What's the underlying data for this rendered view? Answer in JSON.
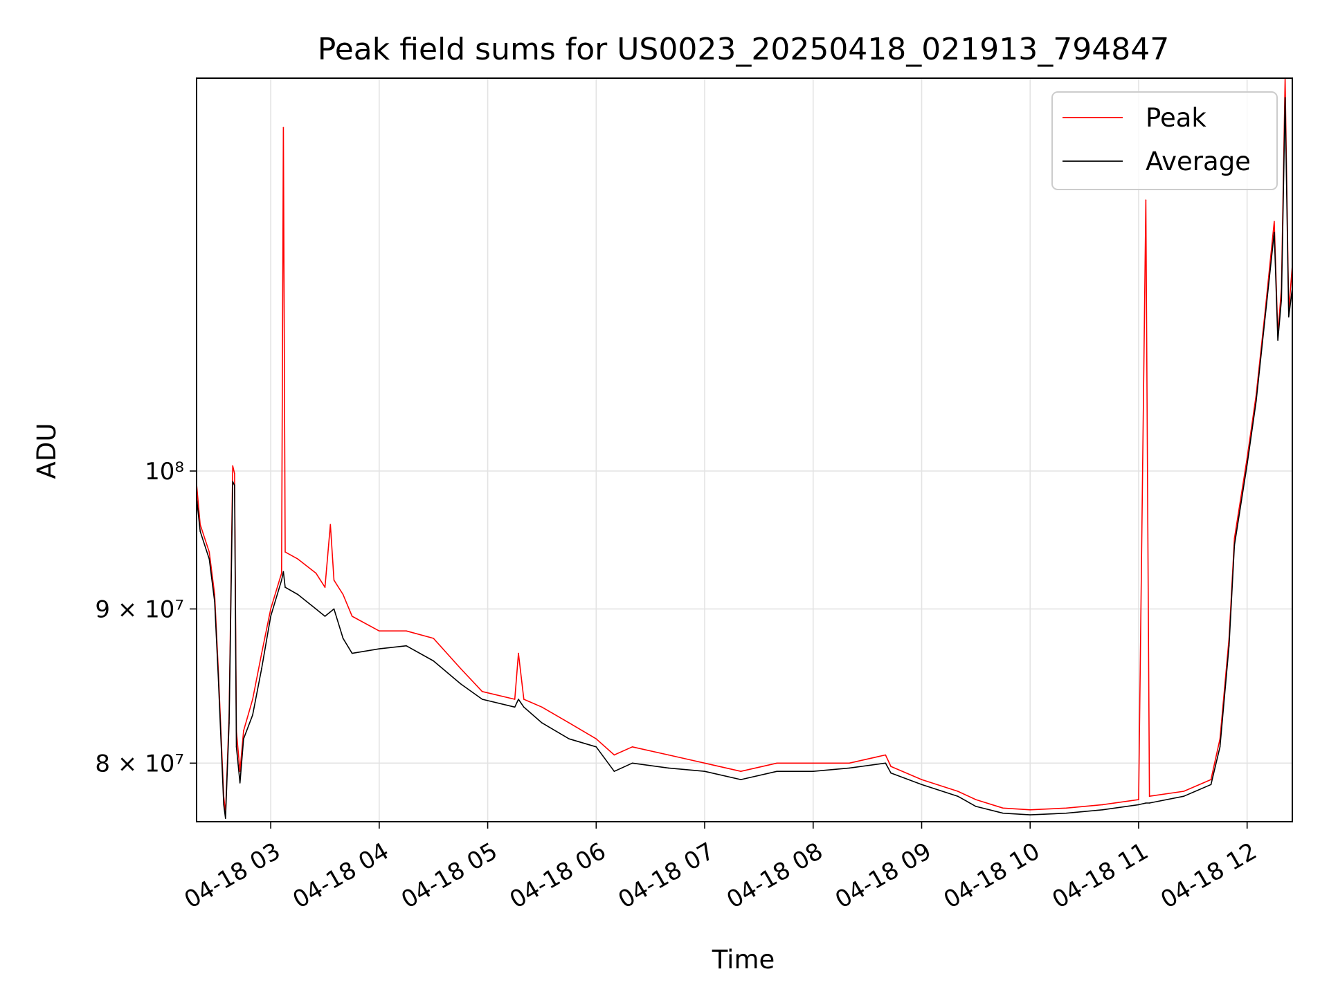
{
  "chart_data": {
    "type": "line",
    "title": "Peak field sums for US0023_20250418_021913_794847",
    "xlabel": "Time",
    "ylabel": "ADU",
    "y_scale": "log",
    "xlim": [
      "2025-04-18 02:19",
      "2025-04-18 12:25"
    ],
    "ylim": [
      76500000,
      135000000
    ],
    "x_ticks": [
      "04-18 03",
      "04-18 04",
      "04-18 05",
      "04-18 06",
      "04-18 07",
      "04-18 08",
      "04-18 09",
      "04-18 10",
      "04-18 11",
      "04-18 12"
    ],
    "y_ticks": [
      {
        "value": 80000000,
        "label": "8 × 10⁷"
      },
      {
        "value": 90000000,
        "label": "9 × 10⁷"
      },
      {
        "value": 100000000,
        "label": "10⁸"
      }
    ],
    "grid": true,
    "legend_position": "top-right",
    "series": [
      {
        "name": "Peak",
        "color": "#ff0000",
        "points": [
          [
            "2025-04-18 02:19",
            99000000
          ],
          [
            "2025-04-18 02:21",
            96000000
          ],
          [
            "2025-04-18 02:26",
            94000000
          ],
          [
            "2025-04-18 02:29",
            91000000
          ],
          [
            "2025-04-18 02:31",
            86000000
          ],
          [
            "2025-04-18 02:34",
            78000000
          ],
          [
            "2025-04-18 02:35",
            77000000
          ],
          [
            "2025-04-18 02:37",
            83000000
          ],
          [
            "2025-04-18 02:39",
            100400000
          ],
          [
            "2025-04-18 02:40",
            99800000
          ],
          [
            "2025-04-18 02:41",
            82000000
          ],
          [
            "2025-04-18 02:43",
            79500000
          ],
          [
            "2025-04-18 02:45",
            82000000
          ],
          [
            "2025-04-18 02:50",
            84000000
          ],
          [
            "2025-04-18 02:55",
            87000000
          ],
          [
            "2025-04-18 03:00",
            90000000
          ],
          [
            "2025-04-18 03:06",
            92500000
          ],
          [
            "2025-04-18 03:07",
            130000000
          ],
          [
            "2025-04-18 03:08",
            94000000
          ],
          [
            "2025-04-18 03:15",
            93500000
          ],
          [
            "2025-04-18 03:25",
            92500000
          ],
          [
            "2025-04-18 03:30",
            91500000
          ],
          [
            "2025-04-18 03:33",
            96000000
          ],
          [
            "2025-04-18 03:35",
            92000000
          ],
          [
            "2025-04-18 03:40",
            91000000
          ],
          [
            "2025-04-18 03:45",
            89500000
          ],
          [
            "2025-04-18 04:00",
            88500000
          ],
          [
            "2025-04-18 04:15",
            88500000
          ],
          [
            "2025-04-18 04:30",
            88000000
          ],
          [
            "2025-04-18 04:45",
            86000000
          ],
          [
            "2025-04-18 04:57",
            84500000
          ],
          [
            "2025-04-18 05:15",
            84000000
          ],
          [
            "2025-04-18 05:17",
            87000000
          ],
          [
            "2025-04-18 05:20",
            84000000
          ],
          [
            "2025-04-18 05:30",
            83500000
          ],
          [
            "2025-04-18 05:45",
            82500000
          ],
          [
            "2025-04-18 06:00",
            81500000
          ],
          [
            "2025-04-18 06:10",
            80500000
          ],
          [
            "2025-04-18 06:20",
            81000000
          ],
          [
            "2025-04-18 06:40",
            80500000
          ],
          [
            "2025-04-18 07:00",
            80000000
          ],
          [
            "2025-04-18 07:20",
            79500000
          ],
          [
            "2025-04-18 07:40",
            80000000
          ],
          [
            "2025-04-18 08:00",
            80000000
          ],
          [
            "2025-04-18 08:20",
            80000000
          ],
          [
            "2025-04-18 08:40",
            80500000
          ],
          [
            "2025-04-18 08:43",
            79800000
          ],
          [
            "2025-04-18 09:00",
            79000000
          ],
          [
            "2025-04-18 09:20",
            78300000
          ],
          [
            "2025-04-18 09:30",
            77800000
          ],
          [
            "2025-04-18 09:45",
            77300000
          ],
          [
            "2025-04-18 10:00",
            77200000
          ],
          [
            "2025-04-18 10:20",
            77300000
          ],
          [
            "2025-04-18 10:40",
            77500000
          ],
          [
            "2025-04-18 11:00",
            77800000
          ],
          [
            "2025-04-18 11:04",
            123000000
          ],
          [
            "2025-04-18 11:06",
            78000000
          ],
          [
            "2025-04-18 11:25",
            78300000
          ],
          [
            "2025-04-18 11:40",
            79000000
          ],
          [
            "2025-04-18 11:45",
            81500000
          ],
          [
            "2025-04-18 11:50",
            88000000
          ],
          [
            "2025-04-18 11:53",
            95000000
          ],
          [
            "2025-04-18 12:00",
            101000000
          ],
          [
            "2025-04-18 12:05",
            106000000
          ],
          [
            "2025-04-18 12:10",
            113000000
          ],
          [
            "2025-04-18 12:15",
            121000000
          ],
          [
            "2025-04-18 12:17",
            111000000
          ],
          [
            "2025-04-18 12:19",
            115000000
          ],
          [
            "2025-04-18 12:21",
            135000000
          ],
          [
            "2025-04-18 12:23",
            113000000
          ],
          [
            "2025-04-18 12:25",
            117000000
          ]
        ]
      },
      {
        "name": "Average",
        "color": "#000000",
        "points": [
          [
            "2025-04-18 02:19",
            98000000
          ],
          [
            "2025-04-18 02:21",
            95500000
          ],
          [
            "2025-04-18 02:26",
            93500000
          ],
          [
            "2025-04-18 02:29",
            90500000
          ],
          [
            "2025-04-18 02:31",
            85500000
          ],
          [
            "2025-04-18 02:34",
            77500000
          ],
          [
            "2025-04-18 02:35",
            76700000
          ],
          [
            "2025-04-18 02:37",
            82500000
          ],
          [
            "2025-04-18 02:39",
            99200000
          ],
          [
            "2025-04-18 02:40",
            98900000
          ],
          [
            "2025-04-18 02:41",
            81000000
          ],
          [
            "2025-04-18 02:43",
            78800000
          ],
          [
            "2025-04-18 02:45",
            81500000
          ],
          [
            "2025-04-18 02:50",
            83000000
          ],
          [
            "2025-04-18 02:55",
            86000000
          ],
          [
            "2025-04-18 03:00",
            89500000
          ],
          [
            "2025-04-18 03:06",
            92000000
          ],
          [
            "2025-04-18 03:07",
            92600000
          ],
          [
            "2025-04-18 03:08",
            91500000
          ],
          [
            "2025-04-18 03:15",
            91000000
          ],
          [
            "2025-04-18 03:25",
            90000000
          ],
          [
            "2025-04-18 03:30",
            89500000
          ],
          [
            "2025-04-18 03:35",
            90000000
          ],
          [
            "2025-04-18 03:40",
            88000000
          ],
          [
            "2025-04-18 03:45",
            87000000
          ],
          [
            "2025-04-18 04:00",
            87300000
          ],
          [
            "2025-04-18 04:15",
            87500000
          ],
          [
            "2025-04-18 04:30",
            86500000
          ],
          [
            "2025-04-18 04:45",
            85000000
          ],
          [
            "2025-04-18 04:57",
            84000000
          ],
          [
            "2025-04-18 05:15",
            83500000
          ],
          [
            "2025-04-18 05:17",
            84000000
          ],
          [
            "2025-04-18 05:20",
            83500000
          ],
          [
            "2025-04-18 05:30",
            82500000
          ],
          [
            "2025-04-18 05:45",
            81500000
          ],
          [
            "2025-04-18 06:00",
            81000000
          ],
          [
            "2025-04-18 06:10",
            79500000
          ],
          [
            "2025-04-18 06:20",
            80000000
          ],
          [
            "2025-04-18 06:40",
            79700000
          ],
          [
            "2025-04-18 07:00",
            79500000
          ],
          [
            "2025-04-18 07:20",
            79000000
          ],
          [
            "2025-04-18 07:40",
            79500000
          ],
          [
            "2025-04-18 08:00",
            79500000
          ],
          [
            "2025-04-18 08:20",
            79700000
          ],
          [
            "2025-04-18 08:40",
            80000000
          ],
          [
            "2025-04-18 08:43",
            79400000
          ],
          [
            "2025-04-18 09:00",
            78700000
          ],
          [
            "2025-04-18 09:20",
            78000000
          ],
          [
            "2025-04-18 09:30",
            77400000
          ],
          [
            "2025-04-18 09:45",
            77000000
          ],
          [
            "2025-04-18 10:00",
            76900000
          ],
          [
            "2025-04-18 10:20",
            77000000
          ],
          [
            "2025-04-18 10:40",
            77200000
          ],
          [
            "2025-04-18 11:00",
            77500000
          ],
          [
            "2025-04-18 11:04",
            77600000
          ],
          [
            "2025-04-18 11:06",
            77600000
          ],
          [
            "2025-04-18 11:25",
            78000000
          ],
          [
            "2025-04-18 11:40",
            78700000
          ],
          [
            "2025-04-18 11:45",
            81000000
          ],
          [
            "2025-04-18 11:50",
            87500000
          ],
          [
            "2025-04-18 11:53",
            94500000
          ],
          [
            "2025-04-18 12:00",
            100500000
          ],
          [
            "2025-04-18 12:05",
            105500000
          ],
          [
            "2025-04-18 12:10",
            112500000
          ],
          [
            "2025-04-18 12:15",
            120000000
          ],
          [
            "2025-04-18 12:17",
            110500000
          ],
          [
            "2025-04-18 12:19",
            114000000
          ],
          [
            "2025-04-18 12:21",
            133000000
          ],
          [
            "2025-04-18 12:23",
            112500000
          ],
          [
            "2025-04-18 12:25",
            115000000
          ]
        ]
      }
    ]
  }
}
